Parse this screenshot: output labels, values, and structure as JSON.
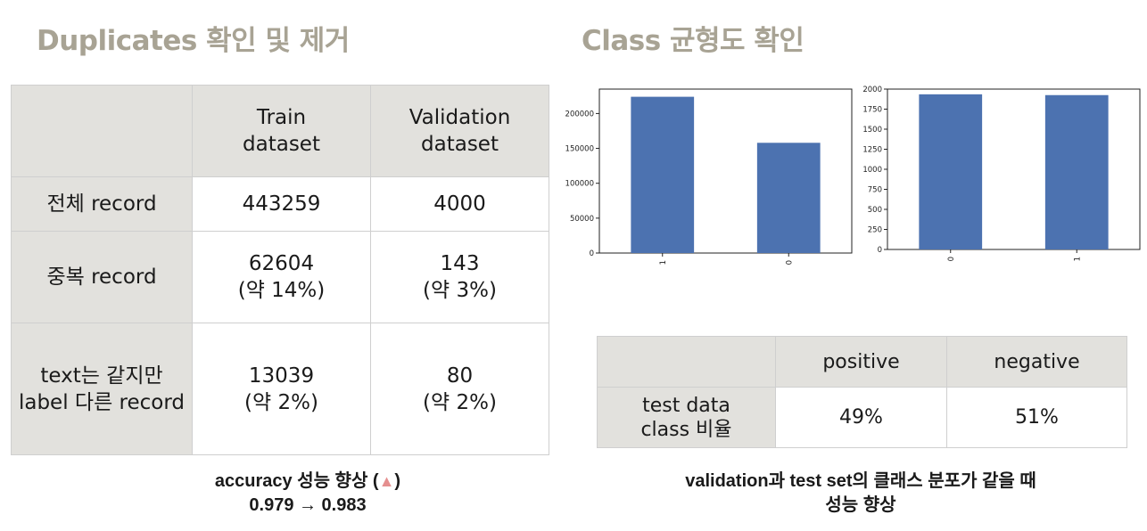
{
  "left": {
    "title": "Duplicates 확인 및 제거",
    "table": {
      "headers": [
        [
          "Train",
          "dataset"
        ],
        [
          "Validation",
          "dataset"
        ]
      ],
      "rows": [
        {
          "label": [
            "전체 record"
          ],
          "train": [
            "443259"
          ],
          "validation": [
            "4000"
          ]
        },
        {
          "label": [
            "중복 record"
          ],
          "train": [
            "62604",
            "(약 14%)"
          ],
          "validation": [
            "143",
            "(약 3%)"
          ]
        },
        {
          "label": [
            "text는 같지만",
            "label 다른 record"
          ],
          "train": [
            "13039",
            "(약 2%)"
          ],
          "validation": [
            "80",
            "(약 2%)"
          ]
        }
      ]
    },
    "note": {
      "line1_text": "accuracy 성능 향상 (",
      "line1_icon": "triangle-up-icon",
      "line1_close": ")",
      "line2": "0.979 → 0.983"
    }
  },
  "right": {
    "title": "Class  균형도 확인",
    "table": {
      "headers": [
        "positive",
        "negative"
      ],
      "row_label": [
        "test data",
        "class 비율"
      ],
      "values": [
        "49%",
        "51%"
      ]
    },
    "note": {
      "line1": "validation과 test set의 클래스 분포가 같을 때",
      "line2": "성능 향상"
    }
  },
  "colors": {
    "title": "#a8a394",
    "bar": "#4c72b0",
    "header_bg": "#e2e1dd",
    "triangle": "#e58f8f"
  },
  "chart_data": [
    {
      "type": "bar",
      "categories": [
        "1",
        "0"
      ],
      "values": [
        224000,
        158000
      ],
      "ylim": [
        0,
        235000
      ],
      "yticks": [
        0,
        50000,
        100000,
        150000,
        200000
      ],
      "ytick_labels": [
        "0",
        "50000",
        "100000",
        "150000",
        "200000"
      ],
      "xlabel": "",
      "ylabel": "",
      "grid": false
    },
    {
      "type": "bar",
      "categories": [
        "0",
        "1"
      ],
      "values": [
        1935,
        1925
      ],
      "ylim": [
        0,
        2000
      ],
      "yticks": [
        0,
        250,
        500,
        750,
        1000,
        1250,
        1500,
        1750,
        2000
      ],
      "ytick_labels": [
        "0",
        "250",
        "500",
        "750",
        "1000",
        "1250",
        "1500",
        "1750",
        "2000"
      ],
      "xlabel": "",
      "ylabel": "",
      "grid": false
    }
  ]
}
